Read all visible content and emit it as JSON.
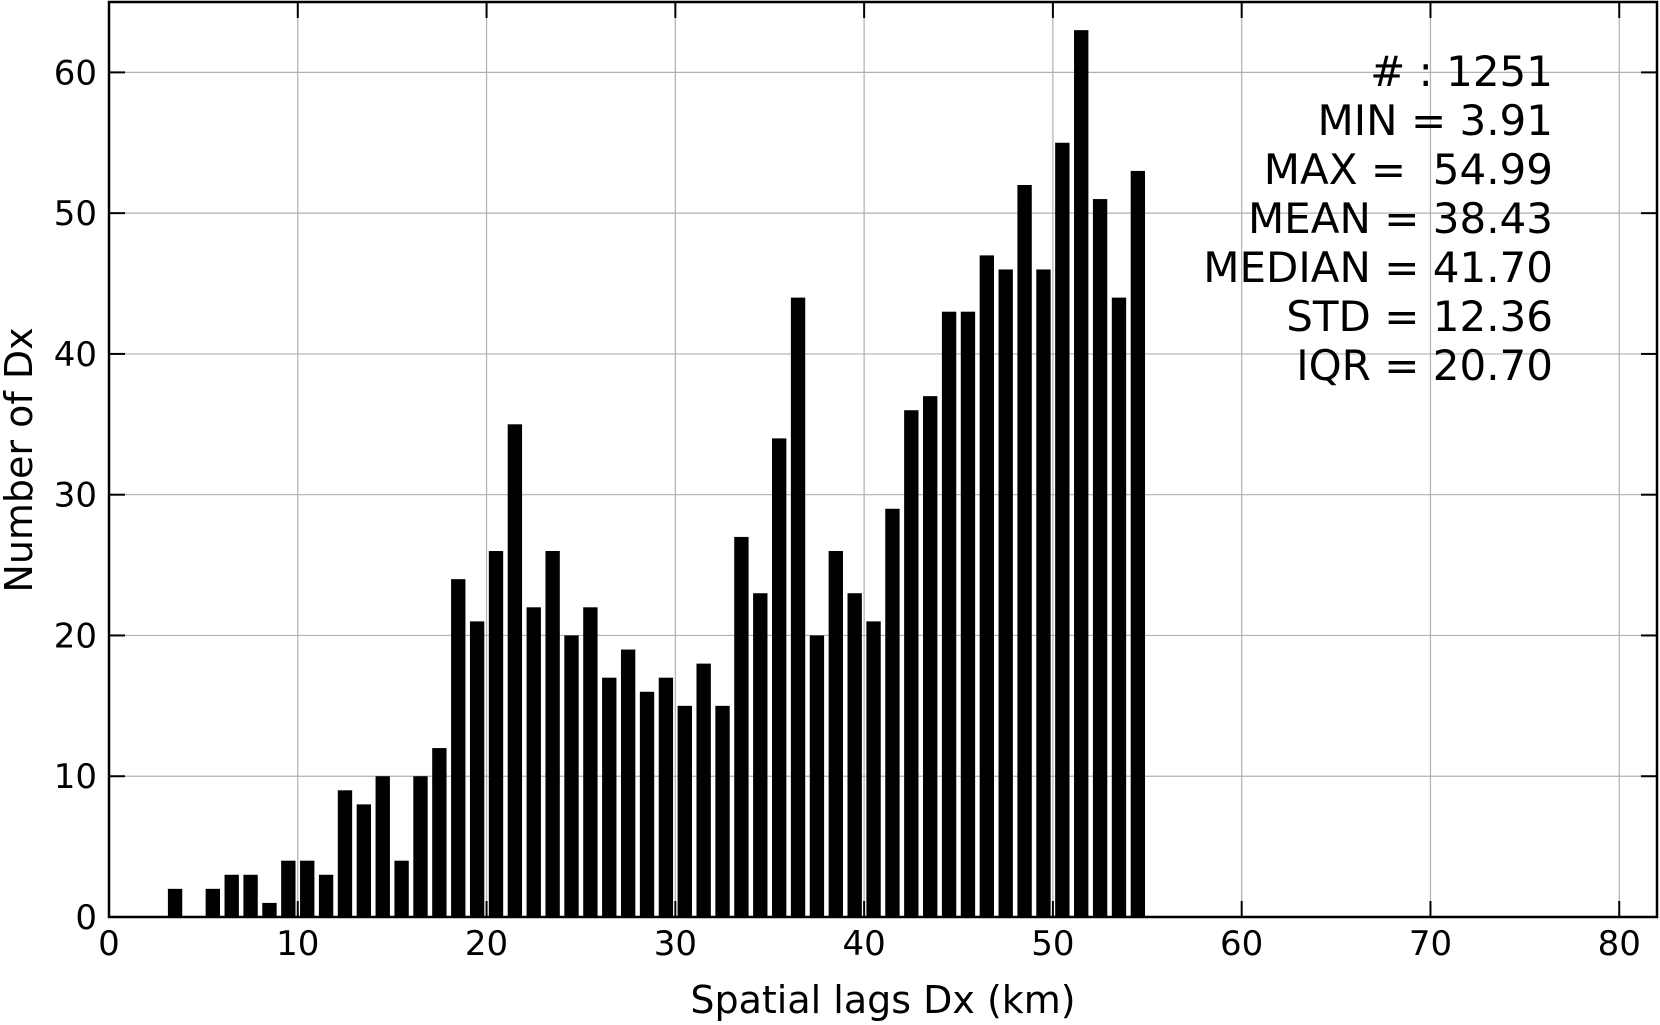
{
  "chart_data": {
    "type": "bar",
    "title": "",
    "xlabel": "Spatial lags Dx (km)",
    "ylabel": "Number of Dx",
    "xlim": [
      0,
      82
    ],
    "ylim": [
      0,
      65
    ],
    "xticks": [
      0,
      10,
      20,
      30,
      40,
      50,
      60,
      70,
      80
    ],
    "yticks": [
      0,
      10,
      20,
      30,
      40,
      50,
      60
    ],
    "grid": true,
    "bar_color": "#000000",
    "bin_width": 1,
    "x": [
      3.5,
      5.5,
      6.5,
      7.5,
      8.5,
      9.5,
      10.5,
      11.5,
      12.5,
      13.5,
      14.5,
      15.5,
      16.5,
      17.5,
      18.5,
      19.5,
      20.5,
      21.5,
      22.5,
      23.5,
      24.5,
      25.5,
      26.5,
      27.5,
      28.5,
      29.5,
      30.5,
      31.5,
      32.5,
      33.5,
      34.5,
      35.5,
      36.5,
      37.5,
      38.5,
      39.5,
      40.5,
      41.5,
      42.5,
      43.5,
      44.5,
      45.5,
      46.5,
      47.5,
      48.5,
      49.5,
      50.5,
      51.5,
      52.5,
      53.5,
      54.5
    ],
    "values": [
      2,
      2,
      3,
      3,
      1,
      4,
      4,
      3,
      9,
      8,
      10,
      4,
      10,
      12,
      24,
      21,
      26,
      35,
      22,
      26,
      20,
      22,
      17,
      19,
      16,
      17,
      15,
      18,
      15,
      27,
      23,
      34,
      44,
      20,
      26,
      23,
      21,
      29,
      36,
      37,
      43,
      43,
      47,
      46,
      52,
      46,
      55,
      63,
      51,
      44,
      53
    ],
    "annotation_lines": [
      "# : 1251",
      "MIN = 3.91",
      "MAX =  54.99",
      "MEAN = 38.43",
      "MEDIAN = 41.70",
      "STD = 12.36",
      "IQR = 20.70"
    ],
    "annotation_position": "top-right"
  }
}
